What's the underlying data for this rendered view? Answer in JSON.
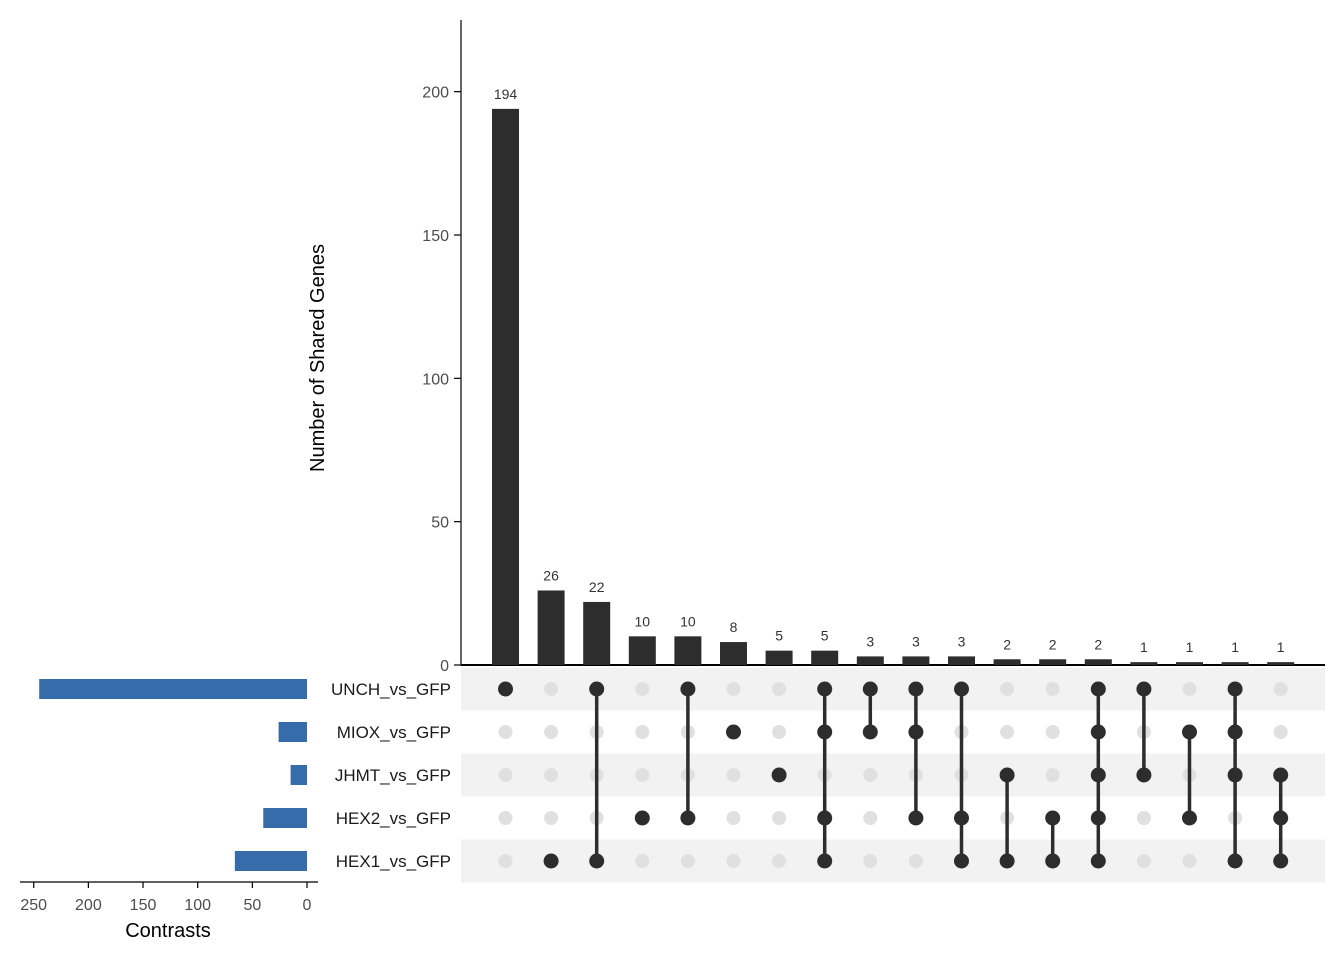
{
  "chart_data": {
    "type": "upset",
    "title": "",
    "ylabel": "Number of Shared Genes",
    "ylim": [
      0,
      225
    ],
    "yticks": [
      0,
      50,
      100,
      150,
      200
    ],
    "sets": [
      "UNCH_vs_GFP",
      "MIOX_vs_GFP",
      "JHMT_vs_GFP",
      "HEX2_vs_GFP",
      "HEX1_vs_GFP"
    ],
    "set_sizes_label": "Contrasts",
    "set_sizes_ticks": [
      250,
      200,
      150,
      100,
      50,
      0
    ],
    "set_sizes_xlim": [
      260,
      0
    ],
    "set_sizes": [
      245,
      26,
      15,
      40,
      66
    ],
    "intersections": [
      {
        "sets": [
          "UNCH_vs_GFP"
        ],
        "size": 194
      },
      {
        "sets": [
          "HEX1_vs_GFP"
        ],
        "size": 26
      },
      {
        "sets": [
          "UNCH_vs_GFP",
          "HEX1_vs_GFP"
        ],
        "size": 22
      },
      {
        "sets": [
          "HEX2_vs_GFP"
        ],
        "size": 10
      },
      {
        "sets": [
          "UNCH_vs_GFP",
          "HEX2_vs_GFP"
        ],
        "size": 10
      },
      {
        "sets": [
          "MIOX_vs_GFP"
        ],
        "size": 8
      },
      {
        "sets": [
          "JHMT_vs_GFP"
        ],
        "size": 5
      },
      {
        "sets": [
          "UNCH_vs_GFP",
          "MIOX_vs_GFP",
          "HEX2_vs_GFP",
          "HEX1_vs_GFP"
        ],
        "size": 5
      },
      {
        "sets": [
          "UNCH_vs_GFP",
          "MIOX_vs_GFP"
        ],
        "size": 3
      },
      {
        "sets": [
          "UNCH_vs_GFP",
          "MIOX_vs_GFP",
          "HEX2_vs_GFP"
        ],
        "size": 3
      },
      {
        "sets": [
          "UNCH_vs_GFP",
          "HEX2_vs_GFP",
          "HEX1_vs_GFP"
        ],
        "size": 3
      },
      {
        "sets": [
          "JHMT_vs_GFP",
          "HEX1_vs_GFP"
        ],
        "size": 2
      },
      {
        "sets": [
          "HEX2_vs_GFP",
          "HEX1_vs_GFP"
        ],
        "size": 2
      },
      {
        "sets": [
          "UNCH_vs_GFP",
          "MIOX_vs_GFP",
          "JHMT_vs_GFP",
          "HEX2_vs_GFP",
          "HEX1_vs_GFP"
        ],
        "size": 2
      },
      {
        "sets": [
          "UNCH_vs_GFP",
          "JHMT_vs_GFP"
        ],
        "size": 1
      },
      {
        "sets": [
          "MIOX_vs_GFP",
          "HEX2_vs_GFP"
        ],
        "size": 1
      },
      {
        "sets": [
          "UNCH_vs_GFP",
          "MIOX_vs_GFP",
          "JHMT_vs_GFP",
          "HEX1_vs_GFP"
        ],
        "size": 1
      },
      {
        "sets": [
          "JHMT_vs_GFP",
          "HEX2_vs_GFP",
          "HEX1_vs_GFP"
        ],
        "size": 1
      }
    ],
    "colors": {
      "bar": "#2d2d2d",
      "set_bar": "#376caa",
      "dot_on": "#2d2d2d",
      "dot_off": "#e0e0e0",
      "stripe": "#f2f2f2",
      "axis": "#000000"
    }
  }
}
